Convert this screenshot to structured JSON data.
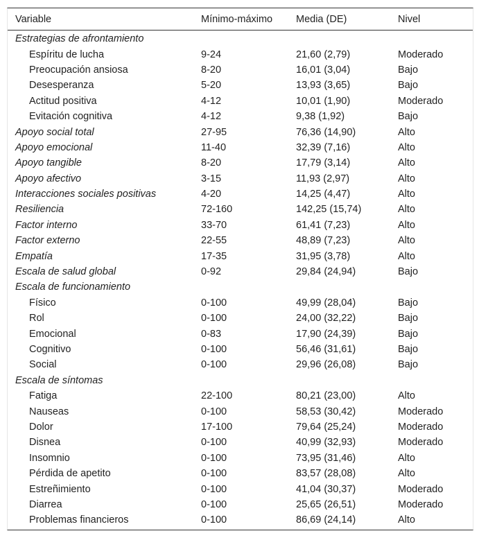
{
  "headers": [
    "Variable",
    "Mínimo-máximo",
    "Media (DE)",
    "Nivel"
  ],
  "rows": [
    {
      "variable": "Estrategias de afrontamiento",
      "range": "",
      "mean": "",
      "level": "",
      "type": "group"
    },
    {
      "variable": "Espíritu de lucha",
      "range": "9-24",
      "mean": "21,60 (2,79)",
      "level": "Moderado",
      "type": "sub"
    },
    {
      "variable": "Preocupación ansiosa",
      "range": "8-20",
      "mean": "16,01 (3,04)",
      "level": "Bajo",
      "type": "sub"
    },
    {
      "variable": "Desesperanza",
      "range": "5-20",
      "mean": "13,93 (3,65)",
      "level": "Bajo",
      "type": "sub"
    },
    {
      "variable": "Actitud positiva",
      "range": "4-12",
      "mean": "10,01 (1,90)",
      "level": "Moderado",
      "type": "sub"
    },
    {
      "variable": "Evitación cognitiva",
      "range": "4-12",
      "mean": "9,38 (1,92)",
      "level": "Bajo",
      "type": "sub"
    },
    {
      "variable": "Apoyo social total",
      "range": "27-95",
      "mean": "76,36 (14,90)",
      "level": "Alto",
      "type": "group"
    },
    {
      "variable": "Apoyo emocional",
      "range": "11-40",
      "mean": "32,39 (7,16)",
      "level": "Alto",
      "type": "group"
    },
    {
      "variable": "Apoyo tangible",
      "range": "8-20",
      "mean": "17,79 (3,14)",
      "level": "Alto",
      "type": "group"
    },
    {
      "variable": "Apoyo afectivo",
      "range": "3-15",
      "mean": "11,93 (2,97)",
      "level": "Alto",
      "type": "group"
    },
    {
      "variable": "Interacciones sociales positivas",
      "range": "4-20",
      "mean": "14,25 (4,47)",
      "level": "Alto",
      "type": "group"
    },
    {
      "variable": "Resiliencia",
      "range": "72-160",
      "mean": "142,25 (15,74)",
      "level": "Alto",
      "type": "group"
    },
    {
      "variable": "Factor interno",
      "range": "33-70",
      "mean": "61,41 (7,23)",
      "level": "Alto",
      "type": "group"
    },
    {
      "variable": "Factor externo",
      "range": "22-55",
      "mean": "48,89 (7,23)",
      "level": "Alto",
      "type": "group"
    },
    {
      "variable": "Empatía",
      "range": "17-35",
      "mean": "31,95 (3,78)",
      "level": "Alto",
      "type": "group"
    },
    {
      "variable": "Escala de salud global",
      "range": "0-92",
      "mean": "29,84 (24,94)",
      "level": "Bajo",
      "type": "group"
    },
    {
      "variable": "Escala de funcionamiento",
      "range": "",
      "mean": "",
      "level": "",
      "type": "group"
    },
    {
      "variable": "Físico",
      "range": "0-100",
      "mean": "49,99 (28,04)",
      "level": "Bajo",
      "type": "sub"
    },
    {
      "variable": "Rol",
      "range": "0-100",
      "mean": "24,00 (32,22)",
      "level": "Bajo",
      "type": "sub"
    },
    {
      "variable": "Emocional",
      "range": "0-83",
      "mean": "17,90 (24,39)",
      "level": "Bajo",
      "type": "sub"
    },
    {
      "variable": "Cognitivo",
      "range": "0-100",
      "mean": "56,46 (31,61)",
      "level": "Bajo",
      "type": "sub"
    },
    {
      "variable": "Social",
      "range": "0-100",
      "mean": "29,96 (26,08)",
      "level": "Bajo",
      "type": "sub"
    },
    {
      "variable": "Escala de síntomas",
      "range": "",
      "mean": "",
      "level": "",
      "type": "group"
    },
    {
      "variable": "Fatiga",
      "range": "22-100",
      "mean": "80,21 (23,00)",
      "level": "Alto",
      "type": "sub"
    },
    {
      "variable": "Nauseas",
      "range": "0-100",
      "mean": "58,53 (30,42)",
      "level": "Moderado",
      "type": "sub"
    },
    {
      "variable": "Dolor",
      "range": "17-100",
      "mean": "79,64 (25,24)",
      "level": "Moderado",
      "type": "sub"
    },
    {
      "variable": "Disnea",
      "range": "0-100",
      "mean": "40,99 (32,93)",
      "level": "Moderado",
      "type": "sub"
    },
    {
      "variable": "Insomnio",
      "range": "0-100",
      "mean": "73,95 (31,46)",
      "level": "Alto",
      "type": "sub"
    },
    {
      "variable": "Pérdida de apetito",
      "range": "0-100",
      "mean": "83,57 (28,08)",
      "level": "Alto",
      "type": "sub"
    },
    {
      "variable": "Estreñimiento",
      "range": "0-100",
      "mean": "41,04 (30,37)",
      "level": "Moderado",
      "type": "sub"
    },
    {
      "variable": "Diarrea",
      "range": "0-100",
      "mean": "25,65 (26,51)",
      "level": "Moderado",
      "type": "sub"
    },
    {
      "variable": "Problemas financieros",
      "range": "0-100",
      "mean": "86,69 (24,14)",
      "level": "Alto",
      "type": "sub"
    }
  ]
}
